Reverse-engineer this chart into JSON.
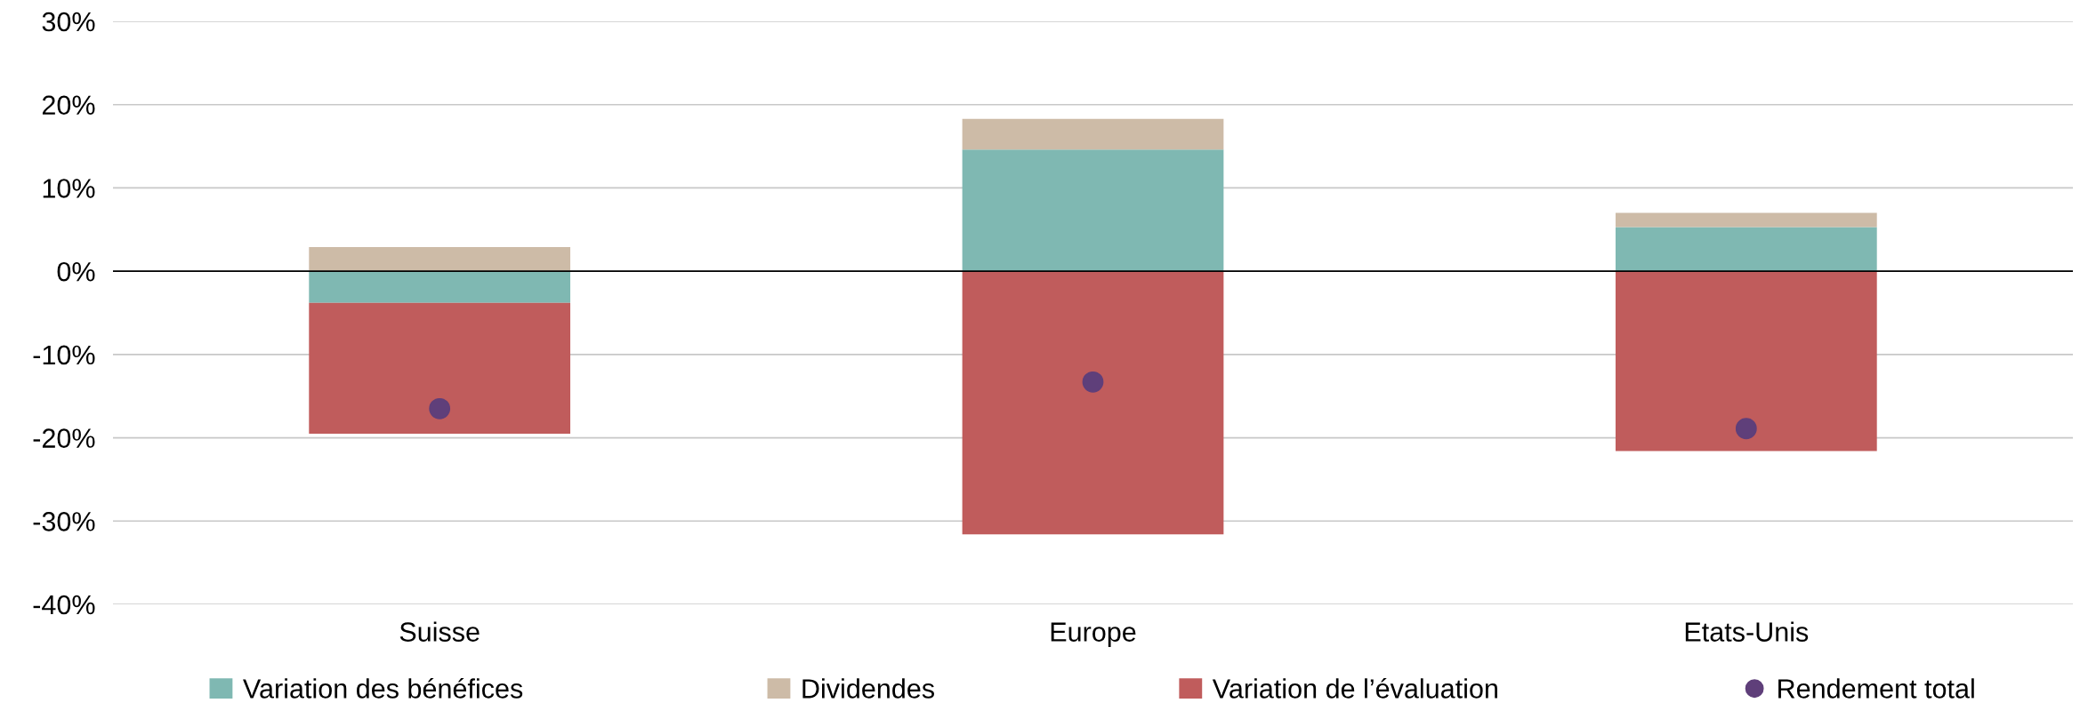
{
  "chart_data": {
    "type": "bar",
    "stacked": true,
    "categories": [
      "Suisse",
      "Europe",
      "Etats-Unis"
    ],
    "series": [
      {
        "name": "Variation des bénéfices",
        "color": "#7fb8b2",
        "values": [
          -3.8,
          14.6,
          5.3
        ]
      },
      {
        "name": "Dividendes",
        "color": "#cdbba7",
        "values": [
          2.9,
          3.7,
          1.7
        ]
      },
      {
        "name": "Variation de l’évaluation",
        "color": "#c05c5c",
        "values": [
          -15.7,
          -31.6,
          -21.6
        ]
      },
      {
        "name": "Rendement total",
        "type": "scatter",
        "color": "#5f3f7a",
        "marker": "circle",
        "values": [
          -16.5,
          -13.3,
          -18.9
        ]
      }
    ],
    "ylim": [
      -40,
      30
    ],
    "yticks": [
      {
        "value": -40,
        "label": "-40%"
      },
      {
        "value": -30,
        "label": "-30%"
      },
      {
        "value": -20,
        "label": "-20%"
      },
      {
        "value": -10,
        "label": "-10%"
      },
      {
        "value": 0,
        "label": "0%"
      },
      {
        "value": 10,
        "label": "10%"
      },
      {
        "value": 20,
        "label": "20%"
      },
      {
        "value": 30,
        "label": "30%"
      }
    ],
    "grid": "y",
    "legend": "bottom"
  }
}
